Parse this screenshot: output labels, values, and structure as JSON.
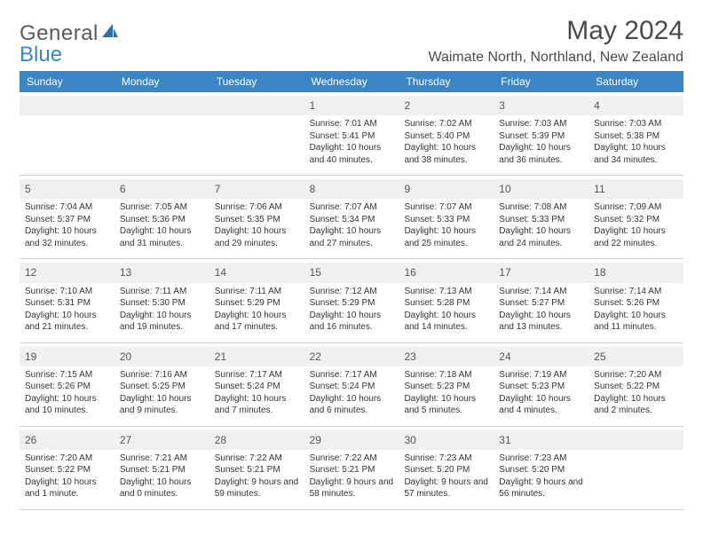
{
  "brand": {
    "word1": "General",
    "word2": "Blue"
  },
  "title": "May 2024",
  "location": "Waimate North, Northland, New Zealand",
  "colors": {
    "header_bg": "#3b85c4",
    "header_text": "#ffffff",
    "daynum_bg": "#eef0f1",
    "text": "#333333",
    "border": "#cfcfcf"
  },
  "fonts": {
    "title_size": 30,
    "location_size": 16,
    "dayhead_size": 12,
    "cell_size": 10
  },
  "day_headers": [
    "Sunday",
    "Monday",
    "Tuesday",
    "Wednesday",
    "Thursday",
    "Friday",
    "Saturday"
  ],
  "weeks": [
    [
      {
        "n": "",
        "empty": true
      },
      {
        "n": "",
        "empty": true
      },
      {
        "n": "",
        "empty": true
      },
      {
        "n": "1",
        "sr": "Sunrise: 7:01 AM",
        "ss": "Sunset: 5:41 PM",
        "dl": "Daylight: 10 hours and 40 minutes."
      },
      {
        "n": "2",
        "sr": "Sunrise: 7:02 AM",
        "ss": "Sunset: 5:40 PM",
        "dl": "Daylight: 10 hours and 38 minutes."
      },
      {
        "n": "3",
        "sr": "Sunrise: 7:03 AM",
        "ss": "Sunset: 5:39 PM",
        "dl": "Daylight: 10 hours and 36 minutes."
      },
      {
        "n": "4",
        "sr": "Sunrise: 7:03 AM",
        "ss": "Sunset: 5:38 PM",
        "dl": "Daylight: 10 hours and 34 minutes."
      }
    ],
    [
      {
        "n": "5",
        "sr": "Sunrise: 7:04 AM",
        "ss": "Sunset: 5:37 PM",
        "dl": "Daylight: 10 hours and 32 minutes."
      },
      {
        "n": "6",
        "sr": "Sunrise: 7:05 AM",
        "ss": "Sunset: 5:36 PM",
        "dl": "Daylight: 10 hours and 31 minutes."
      },
      {
        "n": "7",
        "sr": "Sunrise: 7:06 AM",
        "ss": "Sunset: 5:35 PM",
        "dl": "Daylight: 10 hours and 29 minutes."
      },
      {
        "n": "8",
        "sr": "Sunrise: 7:07 AM",
        "ss": "Sunset: 5:34 PM",
        "dl": "Daylight: 10 hours and 27 minutes."
      },
      {
        "n": "9",
        "sr": "Sunrise: 7:07 AM",
        "ss": "Sunset: 5:33 PM",
        "dl": "Daylight: 10 hours and 25 minutes."
      },
      {
        "n": "10",
        "sr": "Sunrise: 7:08 AM",
        "ss": "Sunset: 5:33 PM",
        "dl": "Daylight: 10 hours and 24 minutes."
      },
      {
        "n": "11",
        "sr": "Sunrise: 7:09 AM",
        "ss": "Sunset: 5:32 PM",
        "dl": "Daylight: 10 hours and 22 minutes."
      }
    ],
    [
      {
        "n": "12",
        "sr": "Sunrise: 7:10 AM",
        "ss": "Sunset: 5:31 PM",
        "dl": "Daylight: 10 hours and 21 minutes."
      },
      {
        "n": "13",
        "sr": "Sunrise: 7:11 AM",
        "ss": "Sunset: 5:30 PM",
        "dl": "Daylight: 10 hours and 19 minutes."
      },
      {
        "n": "14",
        "sr": "Sunrise: 7:11 AM",
        "ss": "Sunset: 5:29 PM",
        "dl": "Daylight: 10 hours and 17 minutes."
      },
      {
        "n": "15",
        "sr": "Sunrise: 7:12 AM",
        "ss": "Sunset: 5:29 PM",
        "dl": "Daylight: 10 hours and 16 minutes."
      },
      {
        "n": "16",
        "sr": "Sunrise: 7:13 AM",
        "ss": "Sunset: 5:28 PM",
        "dl": "Daylight: 10 hours and 14 minutes."
      },
      {
        "n": "17",
        "sr": "Sunrise: 7:14 AM",
        "ss": "Sunset: 5:27 PM",
        "dl": "Daylight: 10 hours and 13 minutes."
      },
      {
        "n": "18",
        "sr": "Sunrise: 7:14 AM",
        "ss": "Sunset: 5:26 PM",
        "dl": "Daylight: 10 hours and 11 minutes."
      }
    ],
    [
      {
        "n": "19",
        "sr": "Sunrise: 7:15 AM",
        "ss": "Sunset: 5:26 PM",
        "dl": "Daylight: 10 hours and 10 minutes."
      },
      {
        "n": "20",
        "sr": "Sunrise: 7:16 AM",
        "ss": "Sunset: 5:25 PM",
        "dl": "Daylight: 10 hours and 9 minutes."
      },
      {
        "n": "21",
        "sr": "Sunrise: 7:17 AM",
        "ss": "Sunset: 5:24 PM",
        "dl": "Daylight: 10 hours and 7 minutes."
      },
      {
        "n": "22",
        "sr": "Sunrise: 7:17 AM",
        "ss": "Sunset: 5:24 PM",
        "dl": "Daylight: 10 hours and 6 minutes."
      },
      {
        "n": "23",
        "sr": "Sunrise: 7:18 AM",
        "ss": "Sunset: 5:23 PM",
        "dl": "Daylight: 10 hours and 5 minutes."
      },
      {
        "n": "24",
        "sr": "Sunrise: 7:19 AM",
        "ss": "Sunset: 5:23 PM",
        "dl": "Daylight: 10 hours and 4 minutes."
      },
      {
        "n": "25",
        "sr": "Sunrise: 7:20 AM",
        "ss": "Sunset: 5:22 PM",
        "dl": "Daylight: 10 hours and 2 minutes."
      }
    ],
    [
      {
        "n": "26",
        "sr": "Sunrise: 7:20 AM",
        "ss": "Sunset: 5:22 PM",
        "dl": "Daylight: 10 hours and 1 minute."
      },
      {
        "n": "27",
        "sr": "Sunrise: 7:21 AM",
        "ss": "Sunset: 5:21 PM",
        "dl": "Daylight: 10 hours and 0 minutes."
      },
      {
        "n": "28",
        "sr": "Sunrise: 7:22 AM",
        "ss": "Sunset: 5:21 PM",
        "dl": "Daylight: 9 hours and 59 minutes."
      },
      {
        "n": "29",
        "sr": "Sunrise: 7:22 AM",
        "ss": "Sunset: 5:21 PM",
        "dl": "Daylight: 9 hours and 58 minutes."
      },
      {
        "n": "30",
        "sr": "Sunrise: 7:23 AM",
        "ss": "Sunset: 5:20 PM",
        "dl": "Daylight: 9 hours and 57 minutes."
      },
      {
        "n": "31",
        "sr": "Sunrise: 7:23 AM",
        "ss": "Sunset: 5:20 PM",
        "dl": "Daylight: 9 hours and 56 minutes."
      },
      {
        "n": "",
        "empty": true
      }
    ]
  ]
}
